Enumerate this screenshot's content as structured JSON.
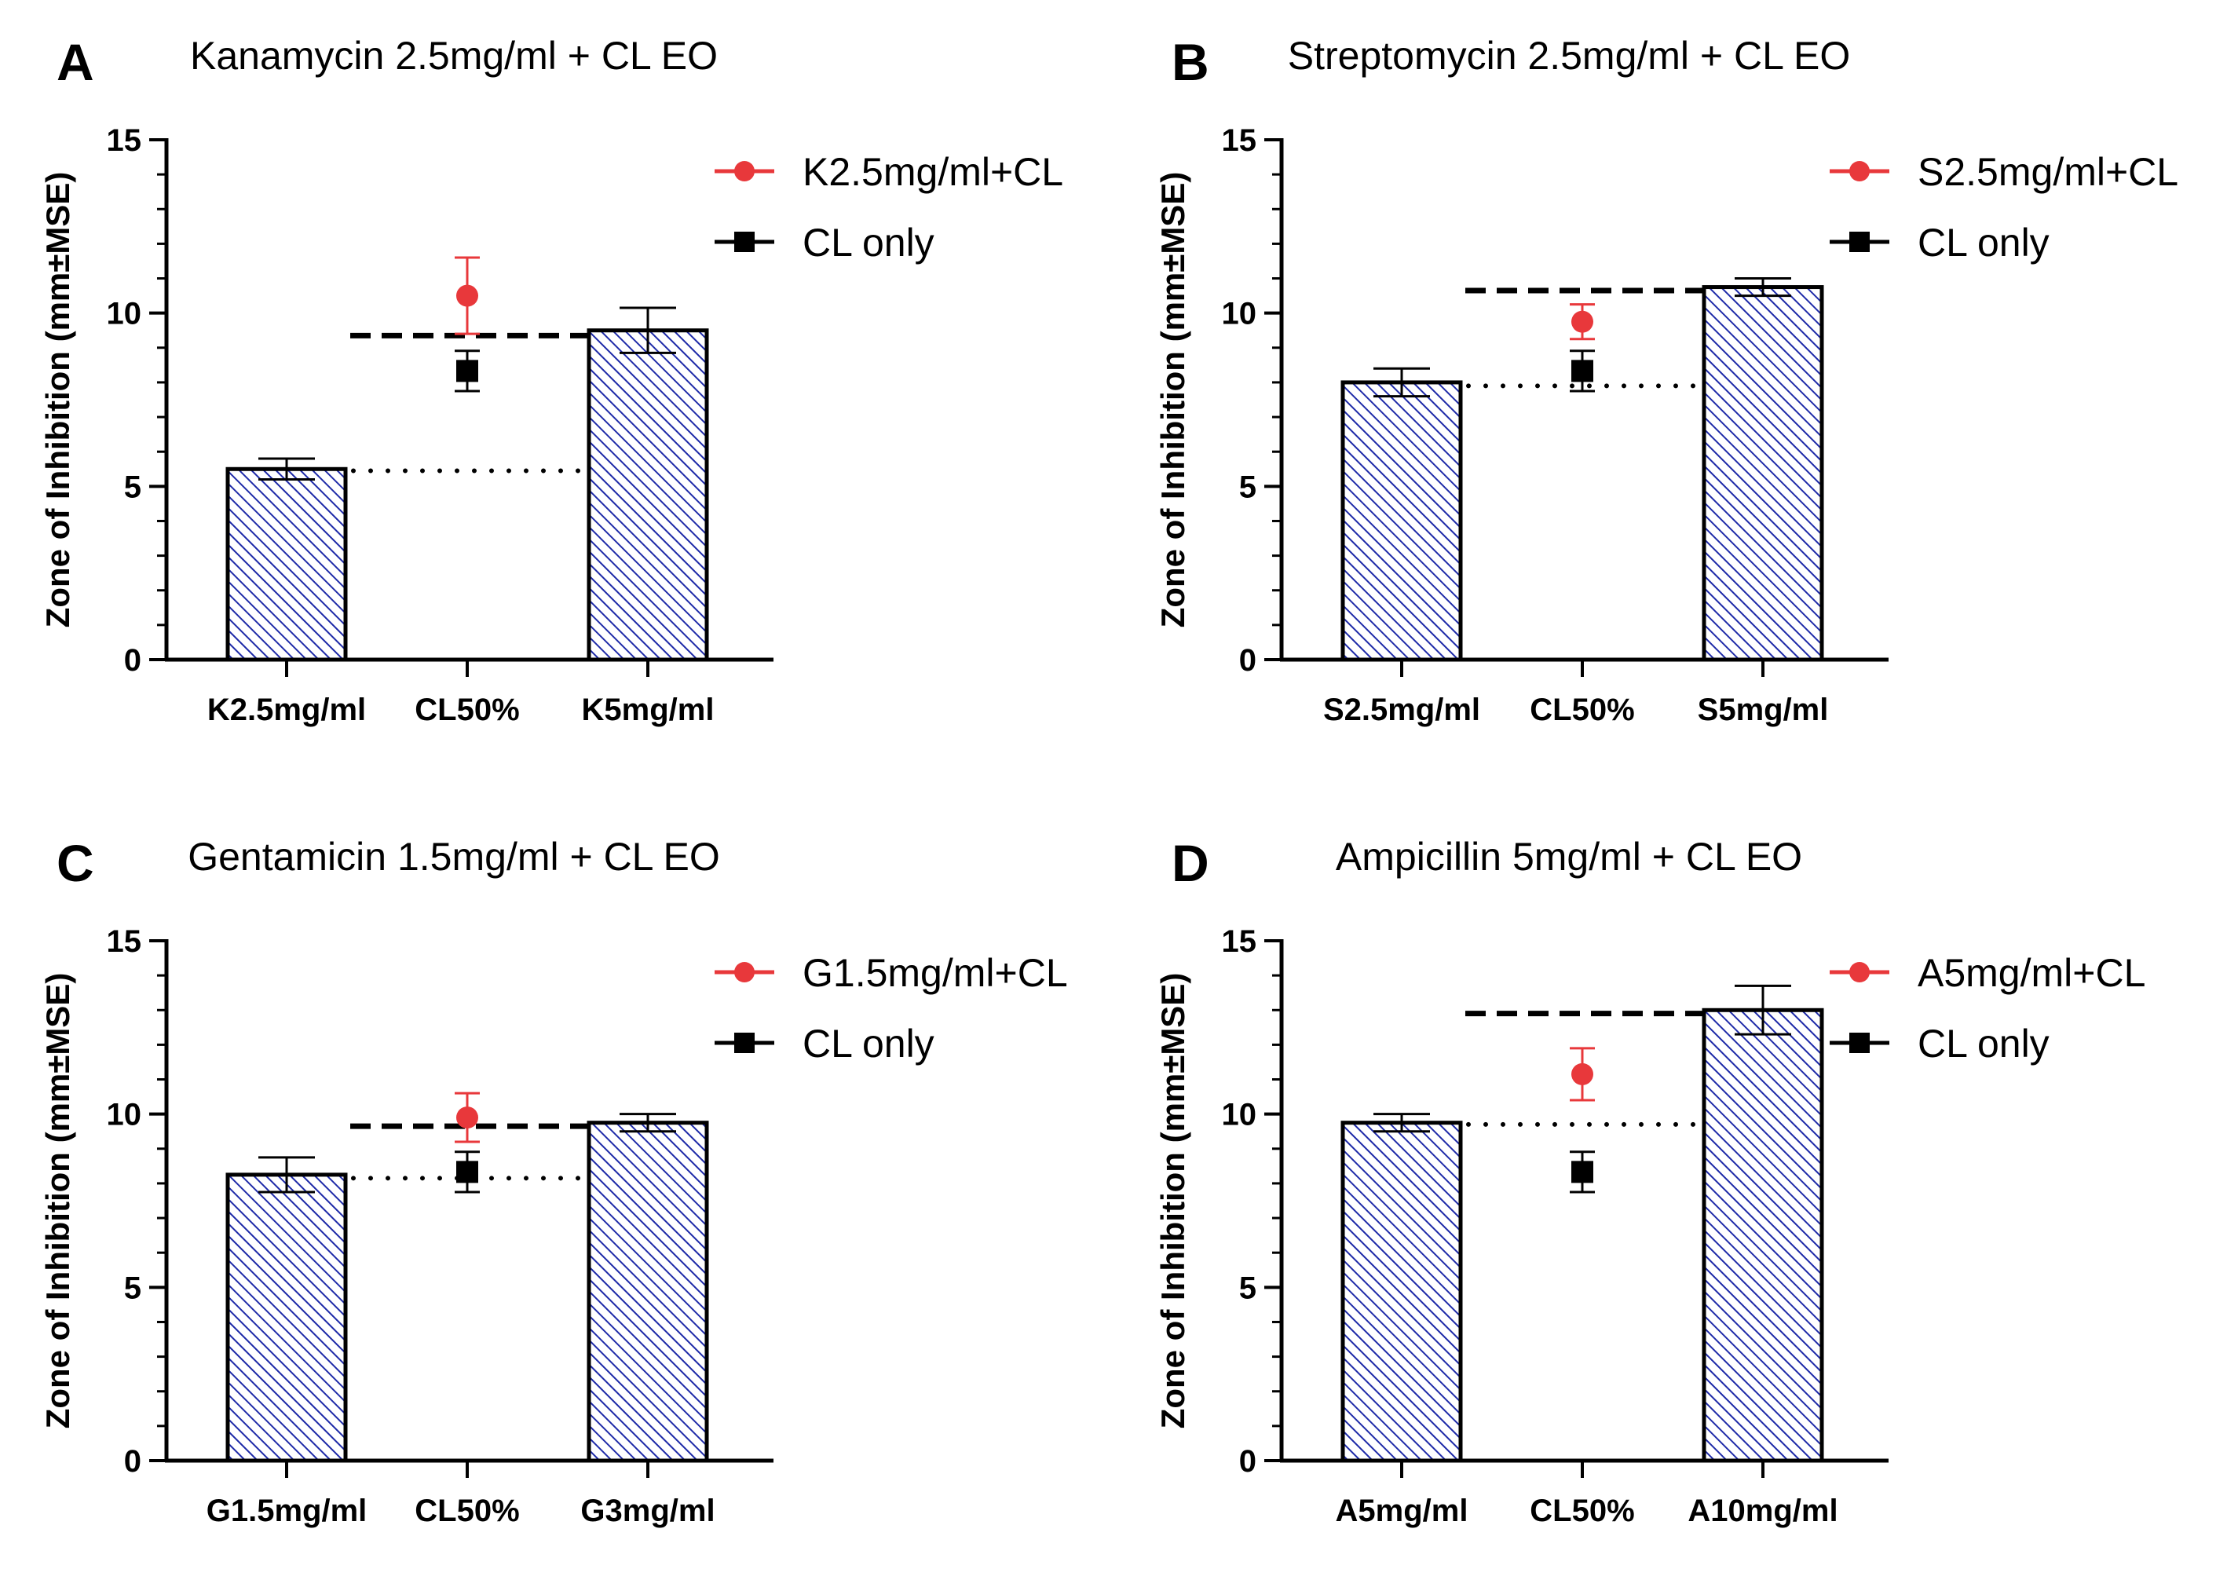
{
  "chart_data": [
    {
      "type": "bar",
      "panel": "A",
      "title": "Kanamycin 2.5mg/ml + CL EO",
      "ylabel": "Zone of Inhibition (mm±MSE)",
      "xlabel": "",
      "ylim": [
        0,
        15
      ],
      "yticks": [
        0,
        5,
        10,
        15
      ],
      "categories": [
        "K2.5mg/ml",
        "CL50%",
        "K5mg/ml"
      ],
      "bars": [
        {
          "category": "K2.5mg/ml",
          "value": 5.5,
          "error": 0.3
        },
        {
          "category": "K5mg/ml",
          "value": 9.5,
          "error": 0.65
        }
      ],
      "points": [
        {
          "name": "K2.5mg/ml+CL",
          "category": "CL50%",
          "value": 10.5,
          "error": 1.1,
          "color": "#e8383b",
          "marker": "circle"
        },
        {
          "name": "CL only",
          "category": "CL50%",
          "value": 8.33,
          "error": 0.58,
          "color": "#000000",
          "marker": "square"
        }
      ],
      "reference_lines": {
        "dotted": 5.45,
        "dashed": 9.35
      },
      "legend": [
        "K2.5mg/ml+CL",
        "CL only"
      ]
    },
    {
      "type": "bar",
      "panel": "B",
      "title": "Streptomycin 2.5mg/ml + CL EO",
      "ylabel": "Zone of Inhibition (mm±MSE)",
      "xlabel": "",
      "ylim": [
        0,
        15
      ],
      "yticks": [
        0,
        5,
        10,
        15
      ],
      "categories": [
        "S2.5mg/ml",
        "CL50%",
        "S5mg/ml"
      ],
      "bars": [
        {
          "category": "S2.5mg/ml",
          "value": 8.0,
          "error": 0.4
        },
        {
          "category": "S5mg/ml",
          "value": 10.75,
          "error": 0.25
        }
      ],
      "points": [
        {
          "name": "S2.5mg/ml+CL",
          "category": "CL50%",
          "value": 9.75,
          "error": 0.5,
          "color": "#e8383b",
          "marker": "circle"
        },
        {
          "name": "CL only",
          "category": "CL50%",
          "value": 8.33,
          "error": 0.58,
          "color": "#000000",
          "marker": "square"
        }
      ],
      "reference_lines": {
        "dotted": 7.9,
        "dashed": 10.65
      },
      "legend": [
        "S2.5mg/ml+CL",
        "CL only"
      ]
    },
    {
      "type": "bar",
      "panel": "C",
      "title": "Gentamicin 1.5mg/ml + CL EO",
      "ylabel": "Zone of Inhibition (mm±MSE)",
      "xlabel": "",
      "ylim": [
        0,
        15
      ],
      "yticks": [
        0,
        5,
        10,
        15
      ],
      "categories": [
        "G1.5mg/ml",
        "CL50%",
        "G3mg/ml"
      ],
      "bars": [
        {
          "category": "G1.5mg/ml",
          "value": 8.25,
          "error": 0.5
        },
        {
          "category": "G3mg/ml",
          "value": 9.75,
          "error": 0.25
        }
      ],
      "points": [
        {
          "name": "G1.5mg/ml+CL",
          "category": "CL50%",
          "value": 9.9,
          "error": 0.7,
          "color": "#e8383b",
          "marker": "circle"
        },
        {
          "name": "CL only",
          "category": "CL50%",
          "value": 8.33,
          "error": 0.58,
          "color": "#000000",
          "marker": "square"
        }
      ],
      "reference_lines": {
        "dotted": 8.15,
        "dashed": 9.65
      },
      "legend": [
        "G1.5mg/ml+CL",
        "CL only"
      ]
    },
    {
      "type": "bar",
      "panel": "D",
      "title": "Ampicillin 5mg/ml + CL EO",
      "ylabel": "Zone of Inhibition (mm±MSE)",
      "xlabel": "",
      "ylim": [
        0,
        15
      ],
      "yticks": [
        0,
        5,
        10,
        15
      ],
      "categories": [
        "A5mg/ml",
        "CL50%",
        "A10mg/ml"
      ],
      "bars": [
        {
          "category": "A5mg/ml",
          "value": 9.75,
          "error": 0.25
        },
        {
          "category": "A10mg/ml",
          "value": 13.0,
          "error": 0.7
        }
      ],
      "points": [
        {
          "name": "A5mg/ml+CL",
          "category": "CL50%",
          "value": 11.15,
          "error": 0.75,
          "color": "#e8383b",
          "marker": "circle"
        },
        {
          "name": "CL only",
          "category": "CL50%",
          "value": 8.33,
          "error": 0.58,
          "color": "#000000",
          "marker": "square"
        }
      ],
      "reference_lines": {
        "dotted": 9.7,
        "dashed": 12.9
      },
      "legend": [
        "A5mg/ml+CL",
        "CL only"
      ]
    }
  ],
  "colors": {
    "bar_hatch": "#1e2aa8",
    "point_red": "#e8383b",
    "axis": "#000000"
  }
}
